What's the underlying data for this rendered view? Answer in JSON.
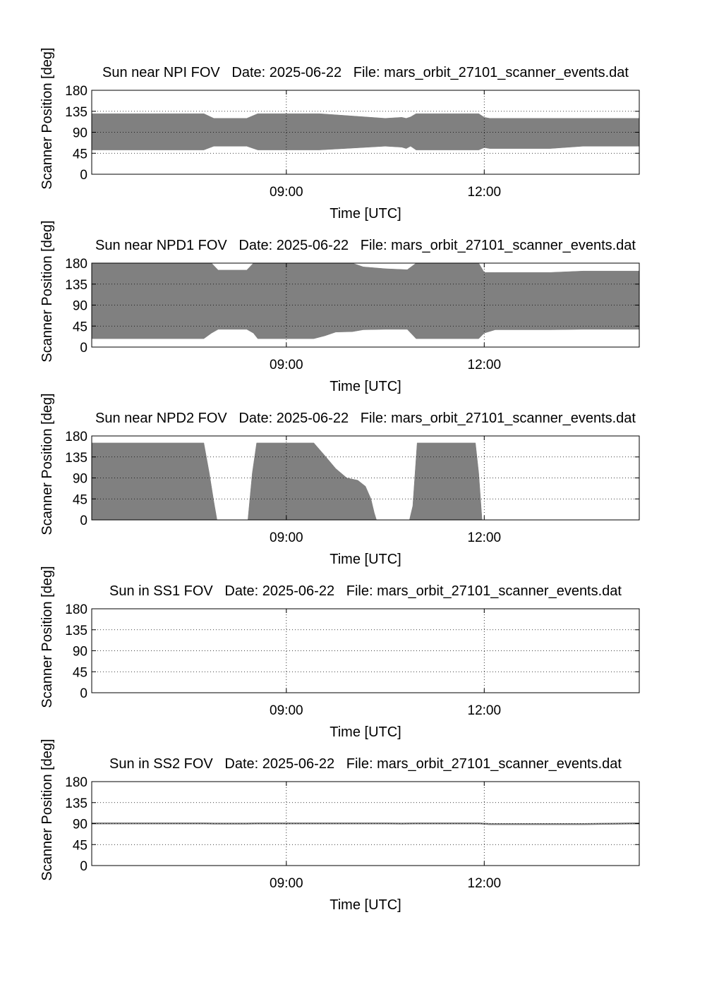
{
  "colors": {
    "fill": "#808080",
    "axes": "#000000",
    "grid": "#000000",
    "background": "#ffffff"
  },
  "chart_data": [
    {
      "type": "area",
      "title": "Sun near NPI FOV   Date: 2025-06-22   File: mars_orbit_27101_scanner_events.dat",
      "xlabel": "Time [UTC]",
      "ylabel": "Scanner Position [deg]",
      "xlim": [
        "06:03",
        "14:21"
      ],
      "ylim": [
        0,
        180
      ],
      "xticks": [
        "09:00",
        "12:00"
      ],
      "yticks": [
        0,
        45,
        90,
        135,
        180
      ],
      "grid": true,
      "x": [
        "06:03",
        "07:45",
        "07:54",
        "08:04",
        "08:24",
        "08:34",
        "09:00",
        "09:30",
        "10:00",
        "10:30",
        "10:45",
        "10:49",
        "10:53",
        "10:58",
        "11:30",
        "11:55",
        "12:00",
        "12:05",
        "12:30",
        "13:00",
        "13:30",
        "14:21"
      ],
      "lower": [
        52,
        52,
        60,
        60,
        60,
        52,
        52,
        52,
        56,
        60,
        58,
        55,
        60,
        52,
        52,
        52,
        57,
        55,
        55,
        55,
        60,
        60
      ],
      "upper": [
        130,
        130,
        120,
        120,
        120,
        130,
        130,
        130,
        125,
        120,
        122,
        120,
        123,
        130,
        130,
        130,
        122,
        120,
        120,
        120,
        120,
        120
      ]
    },
    {
      "type": "area",
      "title": "Sun near NPD1 FOV   Date: 2025-06-22   File: mars_orbit_27101_scanner_events.dat",
      "xlabel": "Time [UTC]",
      "ylabel": "Scanner Position [deg]",
      "xlim": [
        "06:03",
        "14:21"
      ],
      "ylim": [
        0,
        180
      ],
      "xticks": [
        "09:00",
        "12:00"
      ],
      "yticks": [
        0,
        45,
        90,
        135,
        180
      ],
      "grid": true,
      "x": [
        "06:03",
        "07:45",
        "07:52",
        "07:58",
        "08:24",
        "08:30",
        "08:34",
        "09:00",
        "09:25",
        "09:35",
        "09:45",
        "10:00",
        "10:10",
        "10:30",
        "10:50",
        "10:58",
        "11:30",
        "11:55",
        "12:00",
        "12:10",
        "13:00",
        "13:30",
        "14:21"
      ],
      "lower": [
        18,
        18,
        30,
        38,
        38,
        30,
        18,
        18,
        18,
        24,
        32,
        33,
        37,
        38,
        38,
        18,
        18,
        18,
        30,
        37,
        37,
        38,
        38
      ],
      "upper": [
        180,
        180,
        180,
        165,
        165,
        180,
        180,
        180,
        180,
        180,
        180,
        180,
        172,
        168,
        166,
        180,
        180,
        180,
        160,
        160,
        160,
        163,
        163
      ]
    },
    {
      "type": "area",
      "title": "Sun near NPD2 FOV   Date: 2025-06-22   File: mars_orbit_27101_scanner_events.dat",
      "xlabel": "Time [UTC]",
      "ylabel": "Scanner Position [deg]",
      "xlim": [
        "06:03",
        "14:21"
      ],
      "ylim": [
        0,
        180
      ],
      "xticks": [
        "09:00",
        "12:00"
      ],
      "yticks": [
        0,
        45,
        90,
        135,
        180
      ],
      "grid": true,
      "x": [
        "06:03",
        "07:45",
        "07:50",
        "07:54",
        "07:57",
        "08:25",
        "08:29",
        "08:33",
        "09:00",
        "09:25",
        "09:35",
        "09:45",
        "09:55",
        "10:05",
        "10:12",
        "10:17",
        "10:20",
        "10:22",
        "10:52",
        "10:55",
        "10:59",
        "11:30",
        "11:52",
        "11:55",
        "11:58",
        "14:21"
      ],
      "lower": [
        0,
        0,
        0,
        0,
        0,
        0,
        0,
        0,
        0,
        0,
        0,
        0,
        0,
        0,
        0,
        0,
        0,
        0,
        0,
        0,
        0,
        0,
        0,
        0,
        0,
        0
      ],
      "upper": [
        165,
        165,
        100,
        40,
        0,
        0,
        100,
        165,
        165,
        165,
        138,
        110,
        90,
        85,
        72,
        45,
        15,
        0,
        0,
        30,
        165,
        165,
        165,
        100,
        0,
        0
      ]
    },
    {
      "type": "area",
      "title": "Sun in SS1 FOV   Date: 2025-06-22   File: mars_orbit_27101_scanner_events.dat",
      "xlabel": "Time [UTC]",
      "ylabel": "Scanner Position [deg]",
      "xlim": [
        "06:03",
        "14:21"
      ],
      "ylim": [
        0,
        180
      ],
      "xticks": [
        "09:00",
        "12:00"
      ],
      "yticks": [
        0,
        45,
        90,
        135,
        180
      ],
      "grid": true,
      "x": [],
      "lower": [],
      "upper": []
    },
    {
      "type": "area",
      "title": "Sun in SS2 FOV   Date: 2025-06-22   File: mars_orbit_27101_scanner_events.dat",
      "xlabel": "Time [UTC]",
      "ylabel": "Scanner Position [deg]",
      "xlim": [
        "06:03",
        "14:21"
      ],
      "ylim": [
        0,
        180
      ],
      "xticks": [
        "09:00",
        "12:00"
      ],
      "yticks": [
        0,
        45,
        90,
        135,
        180
      ],
      "grid": true,
      "x": [
        "06:03",
        "07:45",
        "07:54",
        "08:24",
        "08:34",
        "09:00",
        "10:30",
        "10:45",
        "10:58",
        "11:55",
        "12:05",
        "13:30",
        "14:21"
      ],
      "lower": [
        89,
        89,
        88.5,
        88.5,
        89,
        89,
        89,
        88.5,
        89,
        89,
        87.5,
        87.5,
        89
      ],
      "upper": [
        92,
        92,
        91.5,
        91.5,
        92,
        92,
        92,
        91.5,
        92,
        92,
        90.5,
        90.5,
        92
      ]
    }
  ]
}
